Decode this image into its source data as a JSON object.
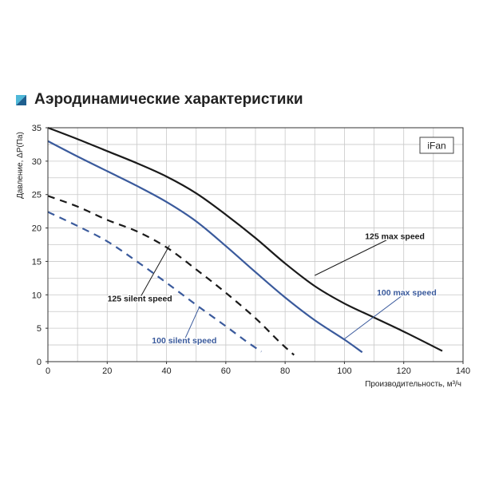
{
  "title": "Аэродинамические характеристики",
  "colors": {
    "black_series": "#1a1a1a",
    "blue_series": "#3a5a9c",
    "grid": "#c8c8c8",
    "icon_dark": "#1f5f8f",
    "icon_light": "#4fb8d8"
  },
  "chart_data": {
    "type": "line",
    "title": "",
    "xlabel": "Производительность, м³/ч",
    "ylabel": "Давление, ΔP(Па)",
    "xlim": [
      0,
      140
    ],
    "ylim": [
      0,
      35
    ],
    "x_ticks": [
      "0",
      "20",
      "40",
      "60",
      "80",
      "100",
      "120",
      "140"
    ],
    "y_ticks": [
      "0",
      "5",
      "10",
      "15",
      "20",
      "25",
      "30",
      "35"
    ],
    "grid": true,
    "legend_box": "iFan",
    "series": [
      {
        "name": "125 max speed",
        "style": "solid",
        "color": "#1a1a1a",
        "x": [
          0,
          10,
          20,
          30,
          40,
          50,
          60,
          70,
          80,
          90,
          100,
          110,
          120,
          133
        ],
        "y": [
          35,
          33.3,
          31.5,
          29.7,
          27.7,
          25.2,
          22.0,
          18.5,
          14.7,
          11.3,
          8.7,
          6.6,
          4.5,
          1.6
        ]
      },
      {
        "name": "100 max speed",
        "style": "solid",
        "color": "#3a5a9c",
        "x": [
          0,
          10,
          20,
          30,
          40,
          50,
          60,
          70,
          80,
          90,
          100,
          106
        ],
        "y": [
          33,
          30.7,
          28.5,
          26.3,
          23.9,
          21.0,
          17.3,
          13.4,
          9.6,
          6.2,
          3.3,
          1.4
        ]
      },
      {
        "name": "125 silent speed",
        "style": "dashed",
        "color": "#1a1a1a",
        "x": [
          0,
          10,
          20,
          30,
          40,
          50,
          60,
          70,
          78,
          83
        ],
        "y": [
          24.8,
          23.2,
          21.2,
          19.5,
          17.1,
          13.8,
          10.3,
          6.5,
          3.0,
          1.0
        ]
      },
      {
        "name": "100 silent speed",
        "style": "dashed",
        "color": "#3a5a9c",
        "x": [
          0,
          10,
          20,
          30,
          40,
          50,
          60,
          67,
          72
        ],
        "y": [
          22.4,
          20.3,
          18.0,
          15.0,
          11.8,
          8.5,
          5.3,
          3.0,
          1.5
        ]
      }
    ],
    "annotations": [
      {
        "text": "125 max speed",
        "color": "#1a1a1a",
        "target": [
          90,
          12.9
        ],
        "label_at": [
          117,
          18.8
        ]
      },
      {
        "text": "100 max speed",
        "color": "#3a5a9c",
        "target": [
          100,
          3.4
        ],
        "label_at": [
          121,
          10.4
        ]
      },
      {
        "text": "125 silent speed",
        "color": "#1a1a1a",
        "target": [
          41,
          17.4
        ],
        "label_at": [
          31,
          9.5
        ]
      },
      {
        "text": "100 silent speed",
        "color": "#3a5a9c",
        "target": [
          51,
          8.1
        ],
        "label_at": [
          46,
          3.2
        ]
      }
    ]
  }
}
